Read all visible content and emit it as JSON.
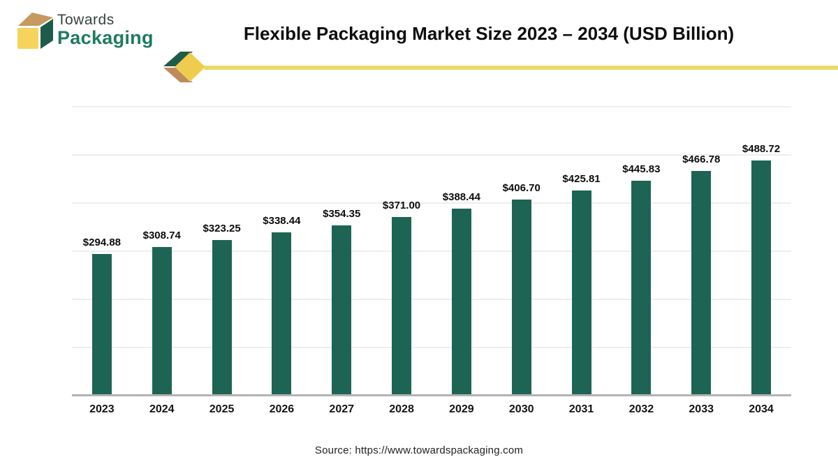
{
  "brand": {
    "line1": "Towards",
    "line2": "Packaging"
  },
  "header": {
    "title": "Flexible Packaging Market Size 2023 – 2034 (USD Billion)"
  },
  "footer": {
    "source": "Source: https://www.towardspackaging.com"
  },
  "icons": {
    "logo": "cube-3d-logo",
    "ribbon": "chevron-diamond-arrow"
  },
  "colors": {
    "bar": "#1e6455",
    "accent_line_yellow": "#ead969",
    "diamond_yellow": "#f0cc4e",
    "cube_front_yellow": "#f6d45c",
    "cube_top_tan": "#c6995f",
    "cube_side_green": "#1d5c4b",
    "brand_green": "#1f7a60",
    "axis_gray": "#b3b3b3",
    "grid_gray": "#eeeeee"
  },
  "chart_data": {
    "type": "bar",
    "title": "Flexible Packaging Market Size 2023 – 2034 (USD Billion)",
    "unit": "USD Billion",
    "categories": [
      "2023",
      "2024",
      "2025",
      "2026",
      "2027",
      "2028",
      "2029",
      "2030",
      "2031",
      "2032",
      "2033",
      "2034"
    ],
    "values": [
      294.88,
      308.74,
      323.25,
      338.44,
      354.35,
      371.0,
      388.44,
      406.7,
      425.81,
      445.83,
      466.78,
      488.72
    ],
    "value_labels": [
      "$294.88",
      "$308.74",
      "$323.25",
      "$338.44",
      "$354.35",
      "$371.00",
      "$388.44",
      "$406.70",
      "$425.81",
      "$445.83",
      "$466.78",
      "$488.72"
    ],
    "xlabel": "",
    "ylabel": "",
    "ylim": [
      0,
      600
    ],
    "yticks": [
      0,
      100,
      200,
      300,
      400,
      500,
      600
    ],
    "grid": true,
    "legend": "none",
    "bar_color": "#1e6455"
  }
}
